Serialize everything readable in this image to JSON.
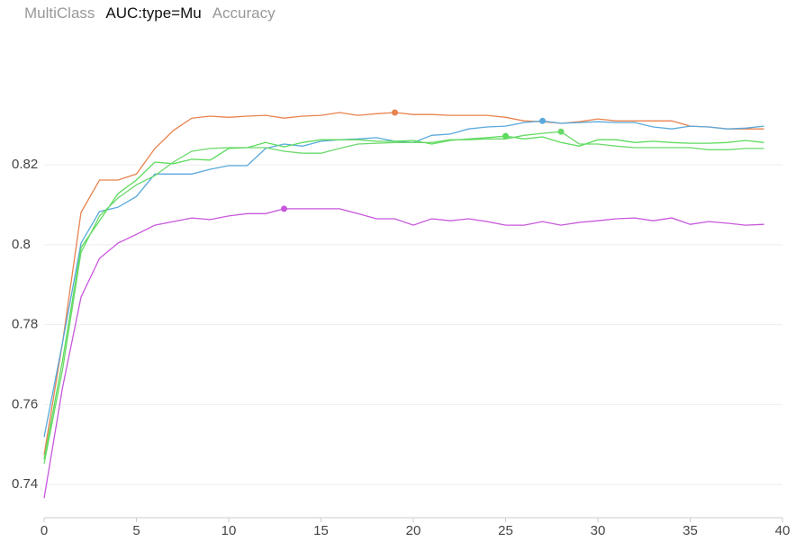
{
  "tabs": {
    "items": [
      "MultiClass",
      "AUC:type=Mu",
      "Accuracy"
    ],
    "active": 1
  },
  "chart_data": {
    "type": "line",
    "x": [
      0,
      1,
      2,
      3,
      4,
      5,
      6,
      7,
      8,
      9,
      10,
      11,
      12,
      13,
      14,
      15,
      16,
      17,
      18,
      19,
      20,
      21,
      22,
      23,
      24,
      25,
      26,
      27,
      28,
      29,
      30,
      31,
      32,
      33,
      34,
      35,
      36,
      37,
      38,
      39
    ],
    "series": [
      {
        "color": "#e8834f",
        "best": 19,
        "values": [
          0.7474,
          0.7756,
          0.8081,
          0.8162,
          0.8162,
          0.8177,
          0.8241,
          0.8286,
          0.8317,
          0.8322,
          0.8319,
          0.8322,
          0.8324,
          0.8317,
          0.8322,
          0.8324,
          0.8331,
          0.8324,
          0.8328,
          0.8331,
          0.8326,
          0.8326,
          0.8324,
          0.8324,
          0.8324,
          0.8319,
          0.831,
          0.8308,
          0.8304,
          0.8308,
          0.8315,
          0.831,
          0.831,
          0.831,
          0.831,
          0.8297,
          0.8295,
          0.829,
          0.829,
          0.829
        ]
      },
      {
        "color": "#5aa9dc",
        "best": 27,
        "values": [
          0.7519,
          0.7756,
          0.8004,
          0.8083,
          0.8094,
          0.8121,
          0.8177,
          0.8177,
          0.8177,
          0.8189,
          0.8198,
          0.8198,
          0.8241,
          0.8252,
          0.8247,
          0.8259,
          0.8263,
          0.8265,
          0.8268,
          0.8259,
          0.8256,
          0.8274,
          0.8277,
          0.829,
          0.8295,
          0.8297,
          0.8306,
          0.831,
          0.8304,
          0.8306,
          0.8308,
          0.8306,
          0.8306,
          0.8295,
          0.829,
          0.8297,
          0.8295,
          0.829,
          0.8292,
          0.8297
        ]
      },
      {
        "color": "#5cdb5c",
        "best": 25,
        "values": [
          0.7463,
          0.7711,
          0.7993,
          0.806,
          0.8128,
          0.8162,
          0.8207,
          0.8203,
          0.8214,
          0.8212,
          0.8241,
          0.8243,
          0.8256,
          0.8245,
          0.8256,
          0.8263,
          0.8263,
          0.8263,
          0.8259,
          0.8259,
          0.8261,
          0.8252,
          0.8261,
          0.8265,
          0.8268,
          0.8272,
          0.8265,
          0.827,
          0.8256,
          0.8247,
          0.8263,
          0.8263,
          0.8256,
          0.8259,
          0.8256,
          0.8254,
          0.8254,
          0.8256,
          0.8261,
          0.8256
        ]
      },
      {
        "color": "#6ad96a",
        "best": 28,
        "values": [
          0.7452,
          0.7688,
          0.7981,
          0.8072,
          0.8117,
          0.815,
          0.8173,
          0.8207,
          0.8234,
          0.8241,
          0.8243,
          0.8243,
          0.8243,
          0.8234,
          0.8229,
          0.8229,
          0.8241,
          0.8252,
          0.8254,
          0.8256,
          0.8256,
          0.8256,
          0.8263,
          0.8263,
          0.8265,
          0.8265,
          0.8274,
          0.8279,
          0.8283,
          0.8252,
          0.8252,
          0.8247,
          0.8243,
          0.8243,
          0.8243,
          0.8243,
          0.8238,
          0.8238,
          0.8241,
          0.8241
        ]
      },
      {
        "color": "#c857dc",
        "best": 13,
        "values": [
          0.7366,
          0.7643,
          0.7869,
          0.7966,
          0.8004,
          0.8026,
          0.8049,
          0.8058,
          0.8067,
          0.8063,
          0.8072,
          0.8078,
          0.8078,
          0.809,
          0.809,
          0.809,
          0.809,
          0.8078,
          0.8065,
          0.8065,
          0.8049,
          0.8065,
          0.806,
          0.8065,
          0.8058,
          0.8049,
          0.8049,
          0.8058,
          0.8049,
          0.8056,
          0.806,
          0.8065,
          0.8067,
          0.806,
          0.8067,
          0.8051,
          0.8058,
          0.8054,
          0.8049,
          0.8051
        ]
      }
    ],
    "xlim": [
      0,
      40
    ],
    "xticks": [
      0,
      5,
      10,
      15,
      20,
      25,
      30,
      35,
      40
    ],
    "ylim": [
      0.7317,
      0.8545
    ],
    "yticks": [
      0.74,
      0.76,
      0.78,
      0.8,
      0.82
    ],
    "grid": true
  }
}
